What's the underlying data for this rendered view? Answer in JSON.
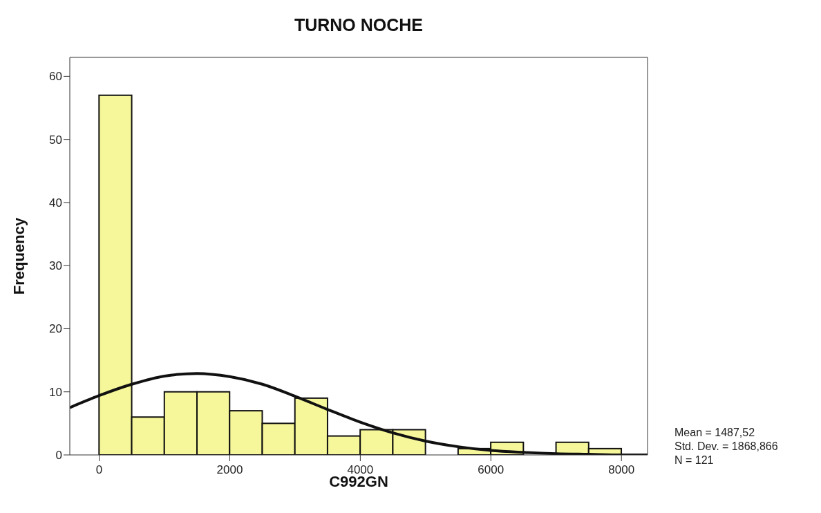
{
  "chart_data": {
    "type": "histogram",
    "title": "TURNO NOCHE",
    "xlabel": "C992GN",
    "ylabel": "Frequency",
    "bins": [
      0,
      500,
      1000,
      1500,
      2000,
      2500,
      3000,
      3500,
      4000,
      4500,
      5000,
      5500,
      6000,
      6500,
      7000,
      7500,
      8000
    ],
    "values": [
      57,
      6,
      10,
      10,
      7,
      5,
      9,
      3,
      4,
      4,
      0,
      1,
      2,
      0,
      2,
      1
    ],
    "color": "#f6f69a",
    "series": [
      {
        "type": "line",
        "color": "#111111",
        "x": [
          -450,
          0,
          500,
          1000,
          1500,
          2000,
          2500,
          3000,
          3500,
          4000,
          4500,
          5000,
          5500,
          6000,
          6500,
          7000,
          7500,
          8000,
          8400
        ],
        "values": [
          7.5,
          9.4,
          11.2,
          12.5,
          12.9,
          12.4,
          11.2,
          9.3,
          7.2,
          5.2,
          3.5,
          2.2,
          1.3,
          0.7,
          0.4,
          0.2,
          0.1,
          0,
          0
        ]
      }
    ],
    "xlim": [
      -450,
      8400
    ],
    "ylim": [
      0,
      63
    ],
    "xticks": [
      0,
      2000,
      4000,
      6000,
      8000
    ],
    "yticks": [
      0,
      10,
      20,
      30,
      40,
      50,
      60
    ],
    "grid": false,
    "legend": false,
    "annotations": [
      "Mean = 1487,52",
      "Std. Dev. = 1868,866",
      "N = 121"
    ]
  }
}
